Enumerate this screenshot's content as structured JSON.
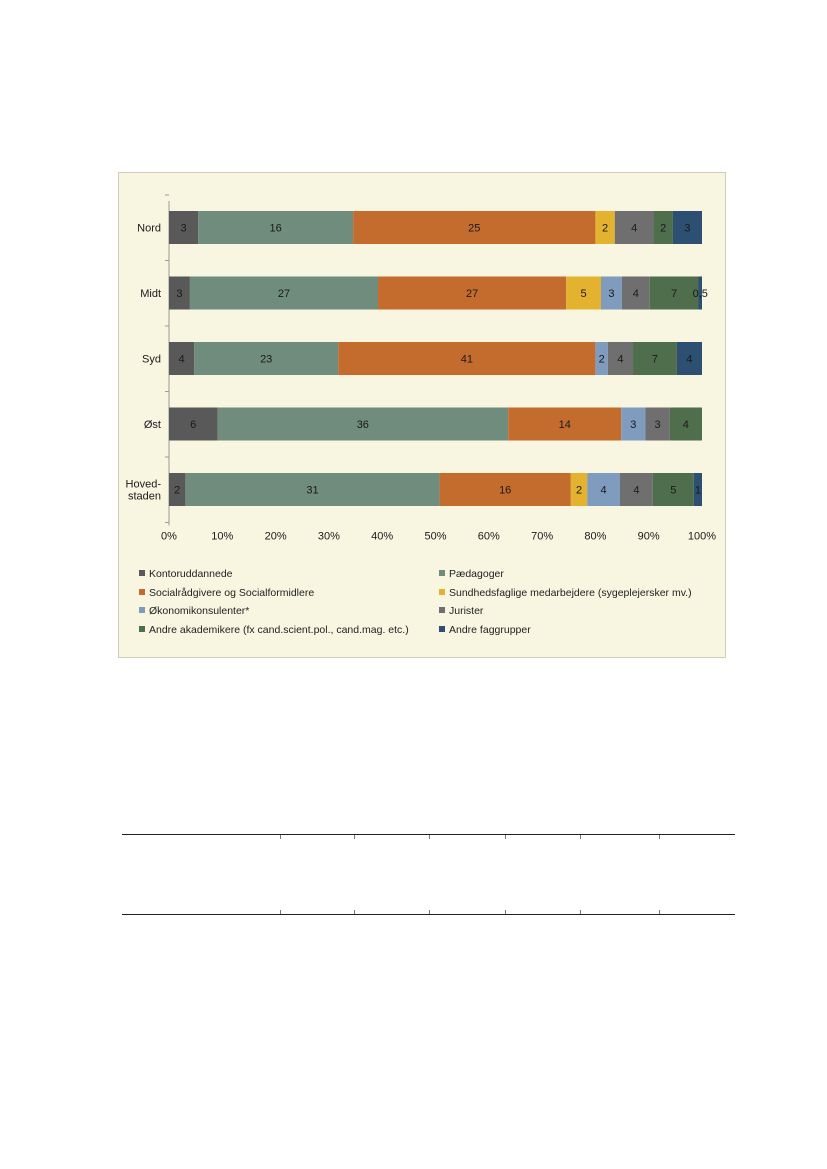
{
  "chart_data": {
    "type": "bar",
    "orientation": "horizontal",
    "stacked": true,
    "percent_stacked": true,
    "categories": [
      "Nord",
      "Midt",
      "Syd",
      "Øst",
      "Hoved-\nstaden"
    ],
    "series": [
      {
        "name": "Kontoruddannede",
        "color": "#595959",
        "values": [
          3,
          3,
          4,
          6,
          2
        ],
        "labels": [
          "3",
          "3",
          "4",
          "6",
          "2"
        ]
      },
      {
        "name": "Pædagoger",
        "color": "#6f8c7d",
        "values": [
          16,
          27,
          23,
          36,
          31
        ],
        "labels": [
          "16",
          "27",
          "23",
          "36",
          "31"
        ]
      },
      {
        "name": "Socialrådgivere og Socialformidlere",
        "color": "#c46c2e",
        "values": [
          25,
          27,
          41,
          14,
          16
        ],
        "labels": [
          "25",
          "27",
          "41",
          "14",
          "16"
        ]
      },
      {
        "name": "Sundhedsfaglige medarbejdere (sygeplejersker mv.)",
        "color": "#e3b22f",
        "values": [
          2,
          5,
          0,
          0,
          2
        ],
        "labels": [
          "2",
          "5",
          "",
          "",
          "2"
        ]
      },
      {
        "name": "Økonomikonsulenter*",
        "color": "#7f9cbf",
        "values": [
          0,
          3,
          2,
          3,
          4
        ],
        "labels": [
          "",
          "3",
          "2",
          "3",
          "4"
        ]
      },
      {
        "name": "Jurister",
        "color": "#6f6f6f",
        "values": [
          4,
          4,
          4,
          3,
          4
        ],
        "labels": [
          "4",
          "4",
          "4",
          "3",
          "4"
        ]
      },
      {
        "name": "Andre akademikere (fx cand.scient.pol., cand.mag. etc.)",
        "color": "#4e6e4c",
        "values": [
          2,
          7,
          7,
          4,
          5
        ],
        "labels": [
          "2",
          "7",
          "7",
          "4",
          "5"
        ]
      },
      {
        "name": "Andre faggrupper",
        "color": "#2c4f72",
        "values": [
          3,
          0.5,
          4,
          0,
          1
        ],
        "labels": [
          "3",
          "0,5",
          "4",
          "",
          "1"
        ]
      }
    ],
    "xlim": [
      0,
      100
    ],
    "xticks": [
      "0%",
      "10%",
      "20%",
      "30%",
      "40%",
      "50%",
      "60%",
      "70%",
      "80%",
      "90%",
      "100%"
    ],
    "grid": false,
    "legend_position": "bottom"
  }
}
